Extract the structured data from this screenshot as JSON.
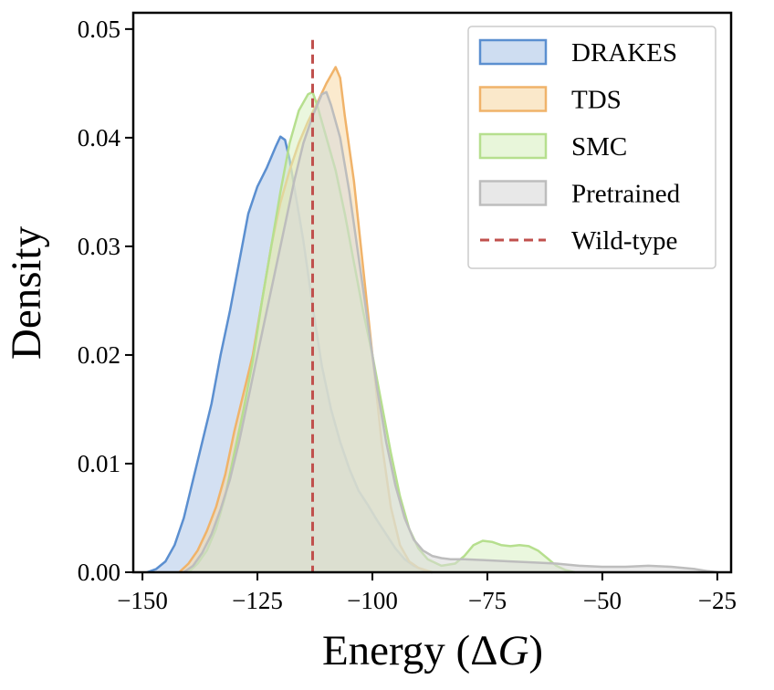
{
  "chart_data": {
    "type": "area",
    "title": "",
    "xlabel": "Energy (ΔG)",
    "xlabel_parts": {
      "prefix": "Energy (",
      "delta": "Δ",
      "var": "G",
      "suffix": ")"
    },
    "ylabel": "Density",
    "xlim": [
      -152,
      -22
    ],
    "ylim": [
      0,
      0.0515
    ],
    "xticks": [
      -150,
      -125,
      -100,
      -75,
      -50,
      -25
    ],
    "xtick_labels": [
      "−150",
      "−125",
      "−100",
      "−75",
      "−50",
      "−25"
    ],
    "yticks": [
      0,
      0.01,
      0.02,
      0.03,
      0.04,
      0.05
    ],
    "ytick_labels": [
      "0.00",
      "0.01",
      "0.02",
      "0.03",
      "0.04",
      "0.05"
    ],
    "grid": false,
    "legend_position": "top-right",
    "series": [
      {
        "name": "DRAKES",
        "fill": "#aec7e8",
        "stroke": "#5b8fd0",
        "points": [
          [
            -149,
            0
          ],
          [
            -147,
            0.0003
          ],
          [
            -145,
            0.001
          ],
          [
            -143,
            0.0025
          ],
          [
            -141,
            0.005
          ],
          [
            -139,
            0.0085
          ],
          [
            -137,
            0.012
          ],
          [
            -135,
            0.0155
          ],
          [
            -133,
            0.02
          ],
          [
            -131,
            0.024
          ],
          [
            -129,
            0.0285
          ],
          [
            -127,
            0.033
          ],
          [
            -125,
            0.0355
          ],
          [
            -123,
            0.0372
          ],
          [
            -121,
            0.0392
          ],
          [
            -120,
            0.0401
          ],
          [
            -119,
            0.0398
          ],
          [
            -118,
            0.038
          ],
          [
            -117,
            0.0355
          ],
          [
            -116,
            0.033
          ],
          [
            -115,
            0.0305
          ],
          [
            -114,
            0.0275
          ],
          [
            -113,
            0.0245
          ],
          [
            -111,
            0.019
          ],
          [
            -109,
            0.015
          ],
          [
            -107,
            0.012
          ],
          [
            -105,
            0.0095
          ],
          [
            -103,
            0.0075
          ],
          [
            -101,
            0.0062
          ],
          [
            -99,
            0.0048
          ],
          [
            -97,
            0.0035
          ],
          [
            -95,
            0.0022
          ],
          [
            -93,
            0.0012
          ],
          [
            -91,
            0.0006
          ],
          [
            -89,
            0.0002
          ],
          [
            -87,
            0
          ]
        ]
      },
      {
        "name": "TDS",
        "fill": "#f7d9a6",
        "stroke": "#f0b36a",
        "points": [
          [
            -142,
            0
          ],
          [
            -140,
            0.0008
          ],
          [
            -138,
            0.002
          ],
          [
            -136,
            0.0038
          ],
          [
            -134,
            0.006
          ],
          [
            -132,
            0.009
          ],
          [
            -130,
            0.013
          ],
          [
            -128,
            0.0165
          ],
          [
            -126,
            0.02
          ],
          [
            -124,
            0.025
          ],
          [
            -122,
            0.03
          ],
          [
            -120,
            0.034
          ],
          [
            -118,
            0.037
          ],
          [
            -116,
            0.0395
          ],
          [
            -114,
            0.0415
          ],
          [
            -112,
            0.0432
          ],
          [
            -110,
            0.045
          ],
          [
            -108,
            0.0465
          ],
          [
            -107,
            0.0455
          ],
          [
            -106,
            0.042
          ],
          [
            -104,
            0.036
          ],
          [
            -102,
            0.028
          ],
          [
            -100,
            0.02
          ],
          [
            -98,
            0.012
          ],
          [
            -96,
            0.006
          ],
          [
            -94,
            0.0025
          ],
          [
            -92,
            0.001
          ],
          [
            -90,
            0.0004
          ],
          [
            -87,
            0
          ]
        ]
      },
      {
        "name": "SMC",
        "fill": "#d9f0c2",
        "stroke": "#b6df8e",
        "points": [
          [
            -140,
            0
          ],
          [
            -138,
            0.0008
          ],
          [
            -136,
            0.002
          ],
          [
            -134,
            0.004
          ],
          [
            -132,
            0.007
          ],
          [
            -130,
            0.011
          ],
          [
            -128,
            0.015
          ],
          [
            -126,
            0.0195
          ],
          [
            -124,
            0.025
          ],
          [
            -122,
            0.03
          ],
          [
            -120,
            0.035
          ],
          [
            -118,
            0.0395
          ],
          [
            -116,
            0.0425
          ],
          [
            -114,
            0.044
          ],
          [
            -113,
            0.0442
          ],
          [
            -112,
            0.043
          ],
          [
            -110,
            0.04
          ],
          [
            -108,
            0.037
          ],
          [
            -106,
            0.033
          ],
          [
            -104,
            0.0285
          ],
          [
            -102,
            0.024
          ],
          [
            -100,
            0.02
          ],
          [
            -98,
            0.0155
          ],
          [
            -96,
            0.011
          ],
          [
            -94,
            0.007
          ],
          [
            -92,
            0.004
          ],
          [
            -90,
            0.0022
          ],
          [
            -88,
            0.0012
          ],
          [
            -85,
            0.0006
          ],
          [
            -82,
            0.0008
          ],
          [
            -80,
            0.0015
          ],
          [
            -78,
            0.0025
          ],
          [
            -76,
            0.0029
          ],
          [
            -74,
            0.0028
          ],
          [
            -72,
            0.0025
          ],
          [
            -70,
            0.0024
          ],
          [
            -68,
            0.0025
          ],
          [
            -66,
            0.0024
          ],
          [
            -64,
            0.002
          ],
          [
            -62,
            0.0013
          ],
          [
            -60,
            0.0006
          ],
          [
            -58,
            0.0002
          ],
          [
            -56,
            0
          ]
        ]
      },
      {
        "name": "Pretrained",
        "fill": "#d9d9d9",
        "stroke": "#bdbdbd",
        "points": [
          [
            -141,
            0
          ],
          [
            -139,
            0.0006
          ],
          [
            -137,
            0.0018
          ],
          [
            -135,
            0.0035
          ],
          [
            -133,
            0.0058
          ],
          [
            -131,
            0.0085
          ],
          [
            -129,
            0.012
          ],
          [
            -127,
            0.016
          ],
          [
            -125,
            0.02
          ],
          [
            -123,
            0.024
          ],
          [
            -121,
            0.028
          ],
          [
            -119,
            0.032
          ],
          [
            -117,
            0.036
          ],
          [
            -115,
            0.0395
          ],
          [
            -113,
            0.042
          ],
          [
            -111,
            0.044
          ],
          [
            -110,
            0.0442
          ],
          [
            -109,
            0.043
          ],
          [
            -107,
            0.04
          ],
          [
            -105,
            0.035
          ],
          [
            -103,
            0.029
          ],
          [
            -101,
            0.023
          ],
          [
            -99,
            0.017
          ],
          [
            -97,
            0.012
          ],
          [
            -95,
            0.008
          ],
          [
            -93,
            0.005
          ],
          [
            -91,
            0.003
          ],
          [
            -89,
            0.002
          ],
          [
            -87,
            0.0015
          ],
          [
            -85,
            0.0013
          ],
          [
            -83,
            0.0012
          ],
          [
            -80,
            0.0012
          ],
          [
            -75,
            0.0011
          ],
          [
            -70,
            0.001
          ],
          [
            -65,
            0.0009
          ],
          [
            -60,
            0.0008
          ],
          [
            -55,
            0.0006
          ],
          [
            -50,
            0.0005
          ],
          [
            -45,
            0.0005
          ],
          [
            -40,
            0.0006
          ],
          [
            -35,
            0.0005
          ],
          [
            -30,
            0.0003
          ],
          [
            -27,
            0.0001
          ],
          [
            -25,
            0
          ]
        ]
      }
    ],
    "reference_line": {
      "name": "Wild-type",
      "x": -113,
      "y_top": 0.049,
      "color": "#c0504d",
      "style": "dashed"
    }
  }
}
